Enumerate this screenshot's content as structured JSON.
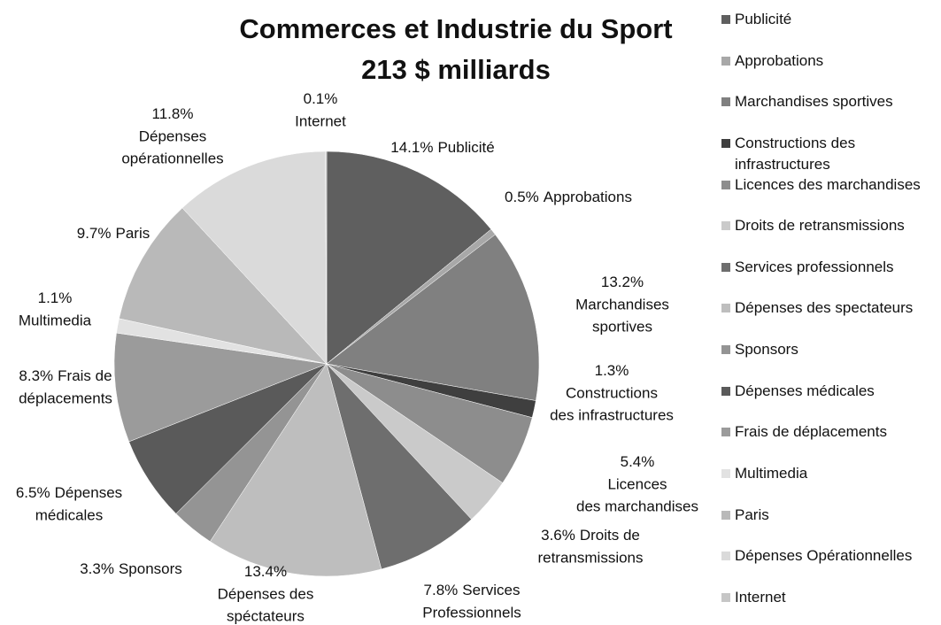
{
  "chart_data": {
    "type": "pie",
    "title": "Commerces et Industrie du Sport",
    "subtitle": "213 $ milliards",
    "categories": [
      "Publicité",
      "Approbations",
      "Marchandises sportives",
      "Constructions des infrastructures",
      "Licences des marchandises",
      "Droits de retransmissions",
      "Services professionnels",
      "Dépenses des spectateurs",
      "Sponsors",
      "Dépenses médicales",
      "Frais de déplacements",
      "Multimedia",
      "Paris",
      "Dépenses Opérationnelles",
      "Internet"
    ],
    "values": [
      14.1,
      0.5,
      13.2,
      1.3,
      5.4,
      3.6,
      7.8,
      13.4,
      3.3,
      6.5,
      8.3,
      1.1,
      9.7,
      11.8,
      0.1
    ],
    "value_labels": [
      "14.1%",
      "0.5%",
      "13.2%",
      "1.3%",
      "5.4%",
      "3.6%",
      "7.8%",
      "13.4%",
      "3.3%",
      "6.5%",
      "8.3%",
      "1.1%",
      "9.7%",
      "11.8%",
      "0.1%"
    ],
    "labels": [
      [
        "Publicité"
      ],
      [
        "Approbations"
      ],
      [
        "Marchandises",
        "sportives"
      ],
      [
        "Constructions",
        "des infrastructures"
      ],
      [
        "Licences",
        "des marchandises"
      ],
      [
        "Droits de",
        "retransmissions"
      ],
      [
        "Services",
        "Professionnels"
      ],
      [
        "Dépenses des",
        "spéctateurs"
      ],
      [
        "Sponsors"
      ],
      [
        "Dépenses",
        "médicales"
      ],
      [
        "Frais de",
        "déplacements"
      ],
      [
        "Multimedia"
      ],
      [
        "Paris"
      ],
      [
        "Dépenses",
        "opérationnelles"
      ],
      [
        "Internet"
      ]
    ],
    "colors": [
      "#5f5f5f",
      "#a8a8a8",
      "#808080",
      "#3f3f3f",
      "#8d8d8d",
      "#cacaca",
      "#6e6e6e",
      "#bebebe",
      "#949494",
      "#5a5a5a",
      "#9b9b9b",
      "#e2e2e2",
      "#b9b9b9",
      "#dadada",
      "#c6c6c6"
    ],
    "legend": "right"
  }
}
